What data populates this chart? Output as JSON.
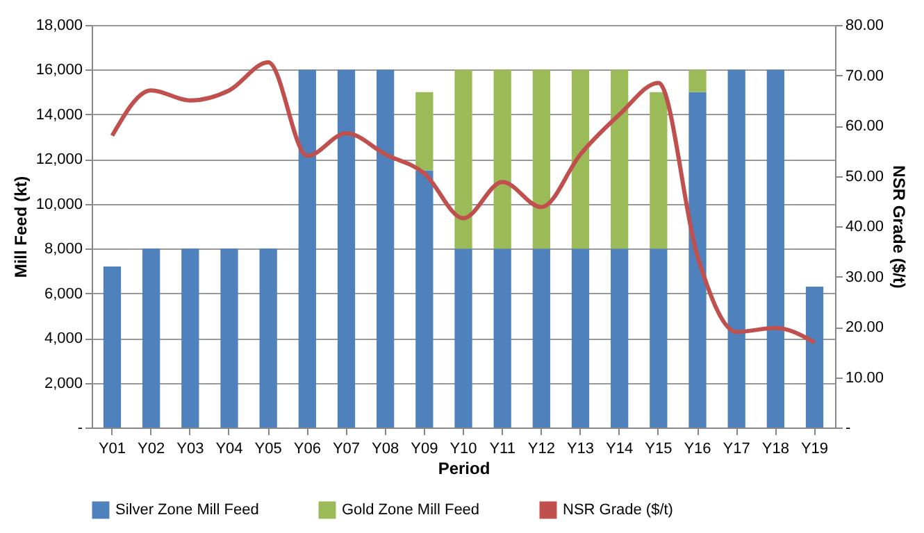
{
  "chart_data": {
    "type": "bar",
    "stacked": true,
    "xlabel": "Period",
    "ylabel": "Mill Feed (kt)",
    "y2label": "NSR Grade ($/t)",
    "categories": [
      "Y01",
      "Y02",
      "Y03",
      "Y04",
      "Y05",
      "Y06",
      "Y07",
      "Y08",
      "Y09",
      "Y10",
      "Y11",
      "Y12",
      "Y13",
      "Y14",
      "Y15",
      "Y16",
      "Y17",
      "Y18",
      "Y19"
    ],
    "series": [
      {
        "name": "Silver Zone Mill Feed",
        "color": "#4f81bd",
        "values": [
          7200,
          8000,
          8000,
          8000,
          8000,
          16000,
          16000,
          16000,
          11500,
          8000,
          8000,
          8000,
          8000,
          8000,
          8000,
          15000,
          16000,
          16000,
          6300
        ]
      },
      {
        "name": "Gold Zone Mill Feed",
        "color": "#9bbb59",
        "values": [
          0,
          0,
          0,
          0,
          0,
          0,
          0,
          0,
          3500,
          8000,
          8000,
          8000,
          8000,
          8000,
          7000,
          1000,
          0,
          0,
          0
        ]
      },
      {
        "name": "NSR Grade ($/t)",
        "type": "line",
        "axis": "y2",
        "color": "#c0504d",
        "values": [
          58,
          67,
          65,
          67,
          72.6,
          54,
          58.5,
          54.3,
          50.5,
          41.6,
          48.8,
          43.8,
          54.3,
          62.2,
          68.5,
          34,
          19,
          19.8,
          16.9
        ]
      }
    ],
    "ylim": [
      0,
      18000
    ],
    "yticks": [
      {
        "value": 0,
        "label": "-"
      },
      {
        "value": 2000,
        "label": "2,000"
      },
      {
        "value": 4000,
        "label": "4,000"
      },
      {
        "value": 6000,
        "label": "6,000"
      },
      {
        "value": 8000,
        "label": "8,000"
      },
      {
        "value": 10000,
        "label": "10,000"
      },
      {
        "value": 12000,
        "label": "12,000"
      },
      {
        "value": 14000,
        "label": "14,000"
      },
      {
        "value": 16000,
        "label": "16,000"
      },
      {
        "value": 18000,
        "label": "18,000"
      }
    ],
    "y2lim": [
      0,
      80
    ],
    "y2ticks": [
      {
        "value": 0,
        "label": "-"
      },
      {
        "value": 10,
        "label": "10.00"
      },
      {
        "value": 20,
        "label": "20.00"
      },
      {
        "value": 30,
        "label": "30.00"
      },
      {
        "value": 40,
        "label": "40.00"
      },
      {
        "value": 50,
        "label": "50.00"
      },
      {
        "value": 60,
        "label": "60.00"
      },
      {
        "value": 70,
        "label": "70.00"
      },
      {
        "value": 80,
        "label": "80.00"
      }
    ],
    "grid": "y",
    "legend": "bottom",
    "marker": "none"
  }
}
